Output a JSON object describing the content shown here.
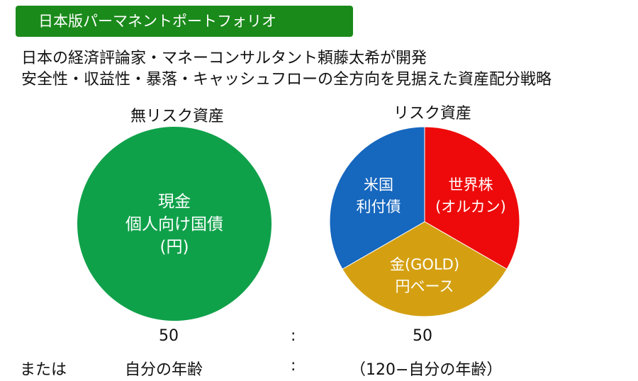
{
  "title": "日本版パーマネントポートフォリオ",
  "description": {
    "line1": "日本の経済評論家・マネーコンサルタント頼藤太希が開発",
    "line2": "安全性・収益性・暴落・キャッシュフローの全方向を見据えた資産配分戦略"
  },
  "left_group": {
    "label": "無リスク資産",
    "circle_lines": [
      "現金",
      "個人向け国債",
      "(円)"
    ],
    "color": "#0fa14a"
  },
  "right_group": {
    "label": "リスク資産",
    "slices": [
      {
        "lines": [
          "世界株",
          "(オルカン)"
        ],
        "share": 1,
        "color": "#ee0a0a"
      },
      {
        "lines": [
          "金(GOLD)",
          "円ベース"
        ],
        "share": 1,
        "color": "#d4a012"
      },
      {
        "lines": [
          "米国",
          "利付債"
        ],
        "share": 1,
        "color": "#1667be"
      }
    ]
  },
  "ratio": {
    "left": "50",
    "separator": ":",
    "right": "50"
  },
  "alternative": {
    "prefix": "または",
    "left": "自分の年齢",
    "separator": ":",
    "right": "（120−自分の年齢）"
  }
}
